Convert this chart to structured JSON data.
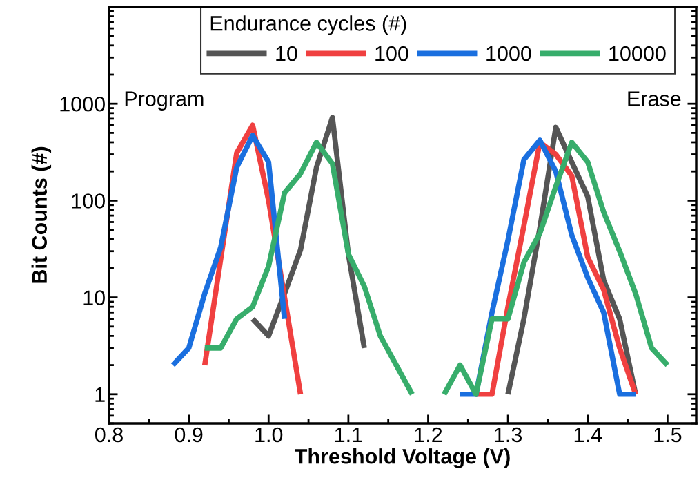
{
  "chart_data": {
    "type": "line",
    "xlabel": "Threshold Voltage (V)",
    "ylabel": "Bit Counts (#)",
    "legend_title": "Endurance cycles (#)",
    "log": "y",
    "xlim": [
      0.8,
      1.536
    ],
    "xticks": [
      {
        "value": 0.8,
        "label": "0.8"
      },
      {
        "value": 0.9,
        "label": "0.9"
      },
      {
        "value": 1.0,
        "label": "1.0"
      },
      {
        "value": 1.1,
        "label": "1.1"
      },
      {
        "value": 1.2,
        "label": "1.2"
      },
      {
        "value": 1.3,
        "label": "1.3"
      },
      {
        "value": 1.4,
        "label": "1.4"
      },
      {
        "value": 1.5,
        "label": "1.5"
      }
    ],
    "ylim": [
      0.5,
      10000
    ],
    "yticks": [
      1,
      10,
      100,
      1000
    ],
    "grid": false,
    "legend": "top",
    "marker": "none",
    "line_style": "solid",
    "annotations": [
      "Program",
      "Erase"
    ],
    "series": [
      {
        "name": "10",
        "color": "#555555",
        "x": [
          0.98,
          1.0,
          1.02,
          1.04,
          1.06,
          1.08,
          1.1,
          1.12,
          null,
          1.3,
          1.32,
          1.34,
          1.36,
          1.38,
          1.4,
          1.42,
          1.44,
          1.46
        ],
        "values": [
          6,
          4,
          11,
          31,
          220,
          720,
          28,
          3,
          null,
          1,
          6,
          52,
          570,
          250,
          110,
          15,
          6,
          1
        ]
      },
      {
        "name": "100",
        "color": "#f04040",
        "x": [
          0.92,
          0.94,
          0.96,
          0.98,
          1.0,
          1.02,
          1.04,
          null,
          1.26,
          1.28,
          1.3,
          1.32,
          1.34,
          1.36,
          1.38,
          1.4,
          1.42,
          1.44,
          1.46
        ],
        "values": [
          2,
          25,
          310,
          600,
          100,
          10,
          1,
          null,
          1,
          1,
          8,
          55,
          400,
          300,
          180,
          26,
          12,
          3,
          1
        ]
      },
      {
        "name": "1000",
        "color": "#1a6fdf",
        "x": [
          0.88,
          0.9,
          0.92,
          0.94,
          0.96,
          0.98,
          1.0,
          1.02,
          null,
          1.24,
          1.26,
          1.28,
          1.3,
          1.32,
          1.34,
          1.36,
          1.38,
          1.4,
          1.42,
          1.44,
          1.46
        ],
        "values": [
          2,
          3,
          11,
          33,
          220,
          470,
          250,
          6,
          null,
          1,
          1,
          7,
          39,
          265,
          420,
          200,
          44,
          16,
          7,
          1,
          1
        ]
      },
      {
        "name": "10000",
        "color": "#37ad6b",
        "x": [
          0.92,
          0.94,
          0.96,
          0.98,
          1.0,
          1.02,
          1.04,
          1.06,
          1.08,
          1.1,
          1.12,
          1.14,
          1.16,
          1.18,
          null,
          1.22,
          1.24,
          1.26,
          1.28,
          1.3,
          1.32,
          1.34,
          1.36,
          1.38,
          1.4,
          1.42,
          1.44,
          1.46,
          1.48,
          1.5
        ],
        "values": [
          3,
          3,
          6,
          8,
          21,
          120,
          190,
          400,
          240,
          28,
          13,
          4,
          2,
          1,
          null,
          1,
          2,
          1,
          6,
          6,
          23,
          46,
          140,
          400,
          250,
          76,
          30,
          11,
          3,
          2
        ]
      }
    ]
  }
}
